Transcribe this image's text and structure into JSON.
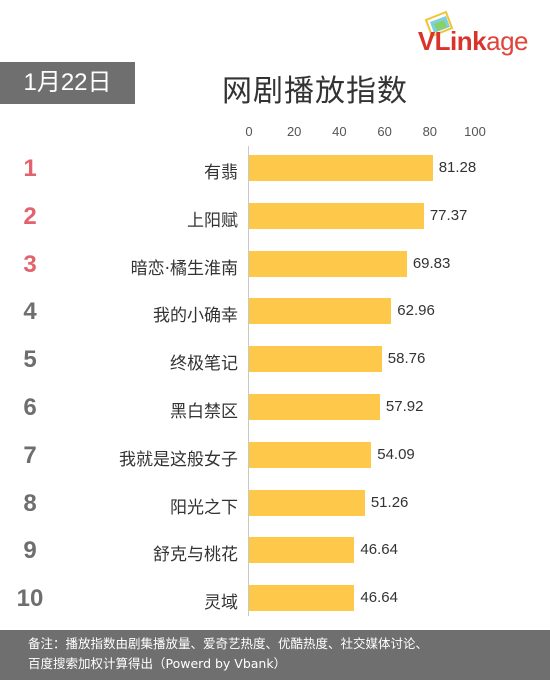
{
  "brand": {
    "logo_text_a": "VLink",
    "logo_text_b": "age"
  },
  "date_badge": "1月22日",
  "chart_data": {
    "type": "bar",
    "orientation": "horizontal",
    "title": "网剧播放指数",
    "xlim": [
      0,
      100
    ],
    "ticks": [
      "0",
      "20",
      "40",
      "60",
      "80",
      "100"
    ],
    "tick_values": [
      0,
      20,
      40,
      60,
      80,
      100
    ],
    "bar_color": "#fec84b",
    "ranks": [
      "1",
      "2",
      "3",
      "4",
      "5",
      "6",
      "7",
      "8",
      "9",
      "10"
    ],
    "categories": [
      "有翡",
      "上阳赋",
      "暗恋·橘生淮南",
      "我的小确幸",
      "终极笔记",
      "黑白禁区",
      "我就是这般女子",
      "阳光之下",
      "舒克与桃花",
      "灵域"
    ],
    "values": [
      81.28,
      77.37,
      69.83,
      62.96,
      58.76,
      57.92,
      54.09,
      51.26,
      46.64,
      46.64
    ],
    "value_labels": [
      "81.28",
      "77.37",
      "69.83",
      "62.96",
      "58.76",
      "57.92",
      "54.09",
      "51.26",
      "46.64",
      "46.64"
    ]
  },
  "footer": {
    "line1": "备注：播放指数由剧集播放量、爱奇艺热度、优酷热度、社交媒体讨论、",
    "line2": "百度搜索加权计算得出（Powerd by Vbank）"
  }
}
